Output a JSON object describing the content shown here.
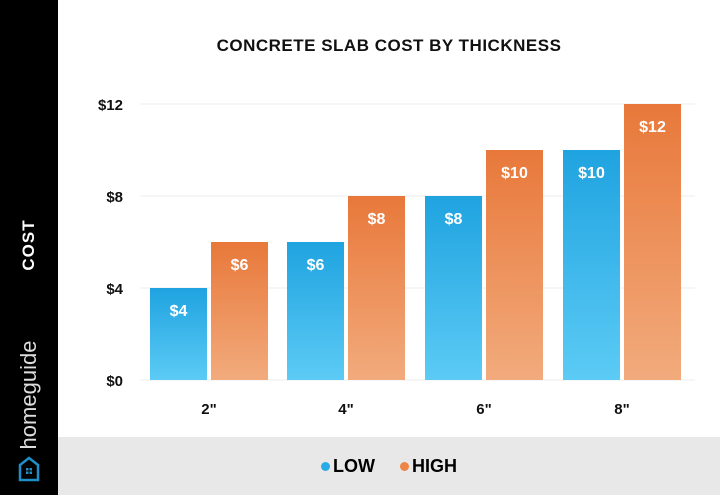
{
  "brand": "homeguide",
  "chart_data": {
    "type": "bar",
    "title": "CONCRETE SLAB COST BY THICKNESS",
    "ylabel": "COST",
    "xlabel": "",
    "categories": [
      "2\"",
      "4\"",
      "6\"",
      "8\""
    ],
    "series": [
      {
        "name": "LOW",
        "values": [
          4,
          6,
          8,
          10
        ],
        "labels": [
          "$4",
          "$6",
          "$8",
          "$10"
        ],
        "color": "#2aaae6"
      },
      {
        "name": "HIGH",
        "values": [
          6,
          8,
          10,
          12
        ],
        "labels": [
          "$6",
          "$8",
          "$10",
          "$12"
        ],
        "color": "#ec8545"
      }
    ],
    "yticks": [
      0,
      4,
      8,
      12
    ],
    "ytick_labels": [
      "$0",
      "$4",
      "$8",
      "$12"
    ],
    "ylim": [
      0,
      12
    ],
    "grid": true,
    "legend": "bottom"
  }
}
